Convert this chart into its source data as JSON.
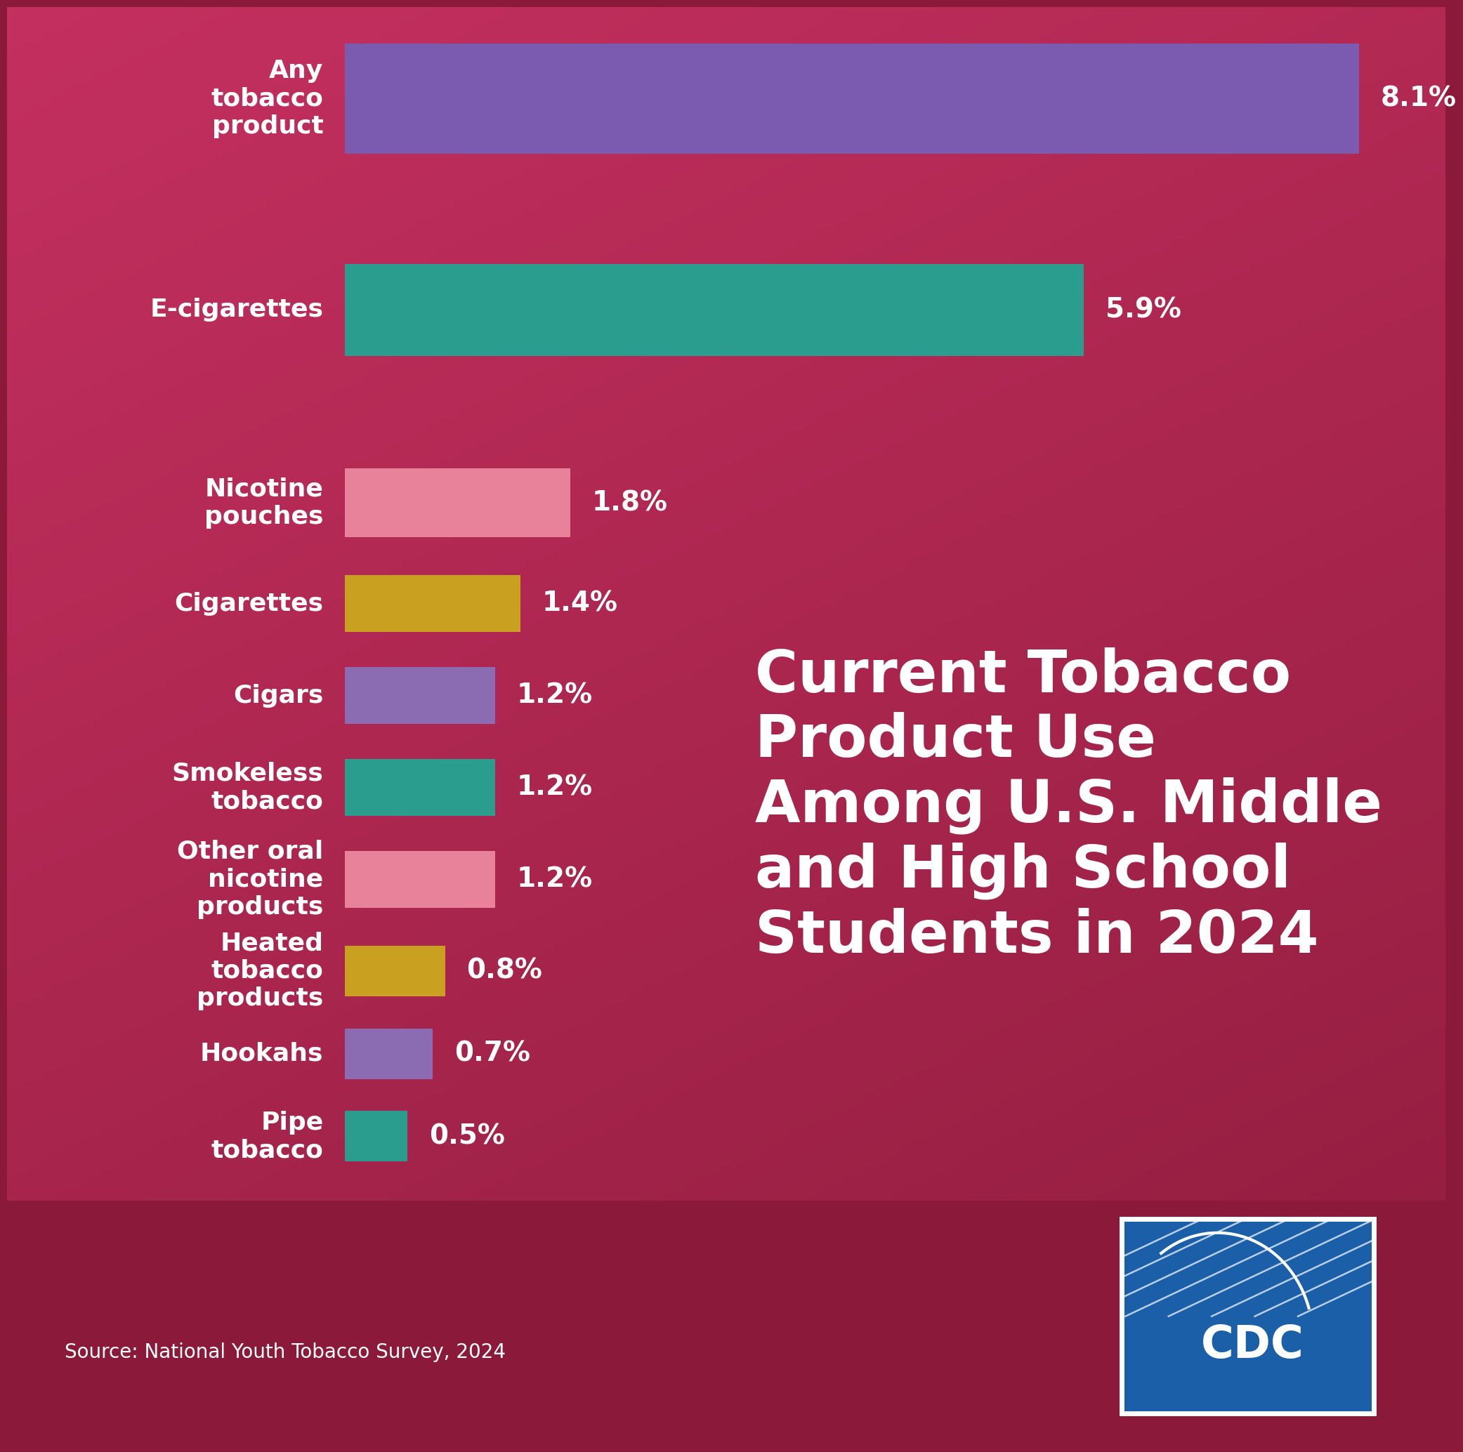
{
  "categories": [
    "Any\ntobacco\nproduct",
    "E-cigarettes",
    "Nicotine\npouches",
    "Cigarettes",
    "Cigars",
    "Smokeless\ntobacco",
    "Other oral\nnicotine\nproducts",
    "Heated\ntobacco\nproducts",
    "Hookahs",
    "Pipe\ntobacco"
  ],
  "values": [
    8.1,
    5.9,
    1.8,
    1.4,
    1.2,
    1.2,
    1.2,
    0.8,
    0.7,
    0.5
  ],
  "labels": [
    "8.1%",
    "5.9%",
    "1.8%",
    "1.4%",
    "1.2%",
    "1.2%",
    "1.2%",
    "0.8%",
    "0.7%",
    "0.5%"
  ],
  "bar_colors": [
    "#7B5BAF",
    "#2A9D8F",
    "#E8829A",
    "#C9A020",
    "#8B6BB1",
    "#2A9D8F",
    "#E8829A",
    "#C9A020",
    "#8B6BB1",
    "#2A9D8F"
  ],
  "bg_color_light": "#C43060",
  "bg_color_dark": "#8B1A3A",
  "footer_color": "#1C6E72",
  "title": "Current Tobacco\nProduct Use\nAmong U.S. Middle\nand High School\nStudents in 2024",
  "source_text": "Source: National Youth Tobacco Survey, 2024",
  "label_fontsize": 26,
  "value_fontsize": 28,
  "title_fontsize": 60,
  "footer_source_fontsize": 20
}
